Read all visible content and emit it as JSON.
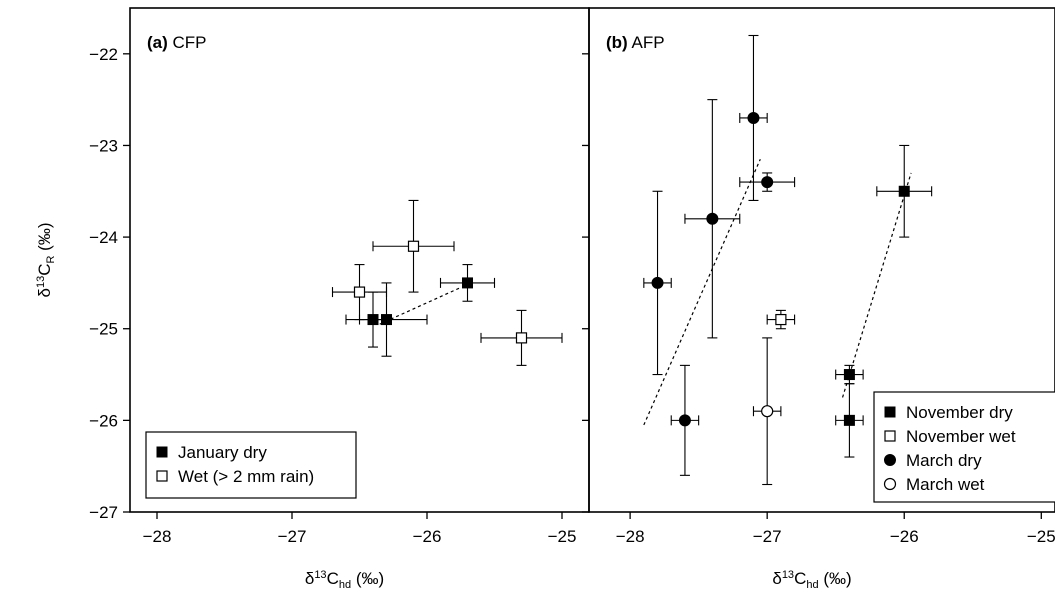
{
  "chart_data": [
    {
      "type": "scatter",
      "panel": "a",
      "title": "(a) CFP",
      "title_bold": "(a)",
      "title_rest": "CFP",
      "xlabel": "δ13Chd (‰)",
      "xlabel_parts": {
        "pre": "δ",
        "sup": "13",
        "mid": "C",
        "sub": "hd",
        "post": " (‰)"
      },
      "ylabel": "δ13CR (‰)",
      "ylabel_parts": {
        "pre": "δ",
        "sup": "13",
        "mid": "C",
        "sub": "R",
        "post": " (‰)"
      },
      "xlim": [
        -28.2,
        -24.8
      ],
      "ylim": [
        -27,
        -21.5
      ],
      "xticks": [
        -28,
        -27,
        -26,
        -25
      ],
      "xtick_labels": [
        "−28",
        "−27",
        "−26",
        "−25"
      ],
      "yticks": [
        -27,
        -26,
        -25,
        -24,
        -23,
        -22
      ],
      "ytick_labels": [
        "−27",
        "−26",
        "−25",
        "−24",
        "−23",
        "−22"
      ],
      "legend_position": "bottom-left",
      "series": [
        {
          "name": "January dry",
          "marker": "square-filled",
          "points": [
            {
              "x": -26.4,
              "y": -24.9,
              "xerr": 0.1,
              "yerr": 0.3
            },
            {
              "x": -26.3,
              "y": -24.9,
              "xerr": 0.3,
              "yerr": 0.4
            },
            {
              "x": -25.7,
              "y": -24.5,
              "xerr": 0.2,
              "yerr": 0.2
            }
          ]
        },
        {
          "name": "Wet (> 2 mm rain)",
          "marker": "square-open",
          "points": [
            {
              "x": -26.5,
              "y": -24.6,
              "xerr": 0.2,
              "yerr": 0.3
            },
            {
              "x": -26.1,
              "y": -24.1,
              "xerr": 0.3,
              "yerr": 0.5
            },
            {
              "x": -25.3,
              "y": -25.1,
              "xerr": 0.3,
              "yerr": 0.3
            }
          ]
        }
      ],
      "regression_lines": [
        {
          "x1": -26.35,
          "y1": -24.95,
          "x2": -25.75,
          "y2": -24.55
        }
      ]
    },
    {
      "type": "scatter",
      "panel": "b",
      "title": "(b) AFP",
      "title_bold": "(b)",
      "title_rest": "AFP",
      "xlabel": "δ13Chd (‰)",
      "xlabel_parts": {
        "pre": "δ",
        "sup": "13",
        "mid": "C",
        "sub": "hd",
        "post": " (‰)"
      },
      "ylabel": "",
      "xlim": [
        -28.3,
        -24.9
      ],
      "ylim": [
        -27,
        -21.5
      ],
      "xticks": [
        -28,
        -27,
        -26,
        -25
      ],
      "xtick_labels": [
        "−28",
        "−27",
        "−26",
        "−25"
      ],
      "yticks": [
        -27,
        -26,
        -25,
        -24,
        -23,
        -22
      ],
      "legend_position": "bottom-right",
      "series": [
        {
          "name": "November dry",
          "marker": "square-filled",
          "points": [
            {
              "x": -26.0,
              "y": -23.5,
              "xerr": 0.2,
              "yerr": 0.5
            },
            {
              "x": -26.4,
              "y": -25.5,
              "xerr": 0.1,
              "yerr": 0.1
            },
            {
              "x": -26.4,
              "y": -26.0,
              "xerr": 0.1,
              "yerr": 0.4
            }
          ]
        },
        {
          "name": "November wet",
          "marker": "square-open",
          "points": [
            {
              "x": -26.9,
              "y": -24.9,
              "xerr": 0.1,
              "yerr": 0.1
            }
          ]
        },
        {
          "name": "March dry",
          "marker": "circle-filled",
          "points": [
            {
              "x": -27.8,
              "y": -24.5,
              "xerr": 0.1,
              "yerr": 1.0
            },
            {
              "x": -27.6,
              "y": -26.0,
              "xerr": 0.1,
              "yerr": 0.6
            },
            {
              "x": -27.4,
              "y": -23.8,
              "xerr": 0.2,
              "yerr": 1.3
            },
            {
              "x": -27.1,
              "y": -22.7,
              "xerr": 0.1,
              "yerr": 0.9
            },
            {
              "x": -27.0,
              "y": -23.4,
              "xerr": 0.2,
              "yerr": 0.1
            }
          ]
        },
        {
          "name": "March wet",
          "marker": "circle-open",
          "points": [
            {
              "x": -27.0,
              "y": -25.9,
              "xerr": 0.1,
              "yerr": 0.8
            }
          ]
        }
      ],
      "regression_lines": [
        {
          "x1": -27.9,
          "y1": -26.05,
          "x2": -27.05,
          "y2": -23.15
        },
        {
          "x1": -26.45,
          "y1": -25.75,
          "x2": -25.95,
          "y2": -23.3
        }
      ]
    }
  ]
}
